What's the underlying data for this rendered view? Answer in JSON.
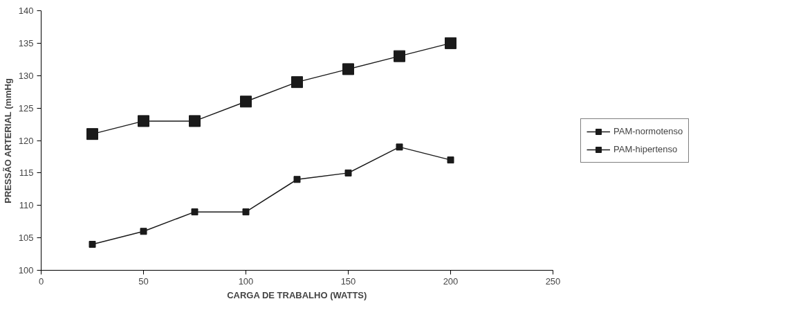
{
  "chart_data": {
    "type": "line",
    "xlabel": "CARGA DE TRABALHO (WATTS)",
    "ylabel": "PRESSÃO ARTERIAL (mmHg",
    "x": [
      25,
      50,
      75,
      100,
      125,
      150,
      175,
      200
    ],
    "series": [
      {
        "name": "PAM-normotenso",
        "color": "#1a1a1a",
        "values": [
          104,
          106,
          109,
          109,
          114,
          115,
          119,
          117
        ]
      },
      {
        "name": "PAM-hipertenso",
        "color": "#1a1a1a",
        "values": [
          121,
          123,
          123,
          126,
          129,
          131,
          133,
          135
        ]
      }
    ],
    "xlim": [
      0,
      250
    ],
    "xticks": [
      0,
      50,
      100,
      150,
      200,
      250
    ],
    "ylim": [
      100,
      140
    ],
    "yticks": [
      100,
      105,
      110,
      115,
      120,
      125,
      130,
      135,
      140
    ],
    "grid": false,
    "legend": "right",
    "marker": "square",
    "line_style": "solid"
  }
}
